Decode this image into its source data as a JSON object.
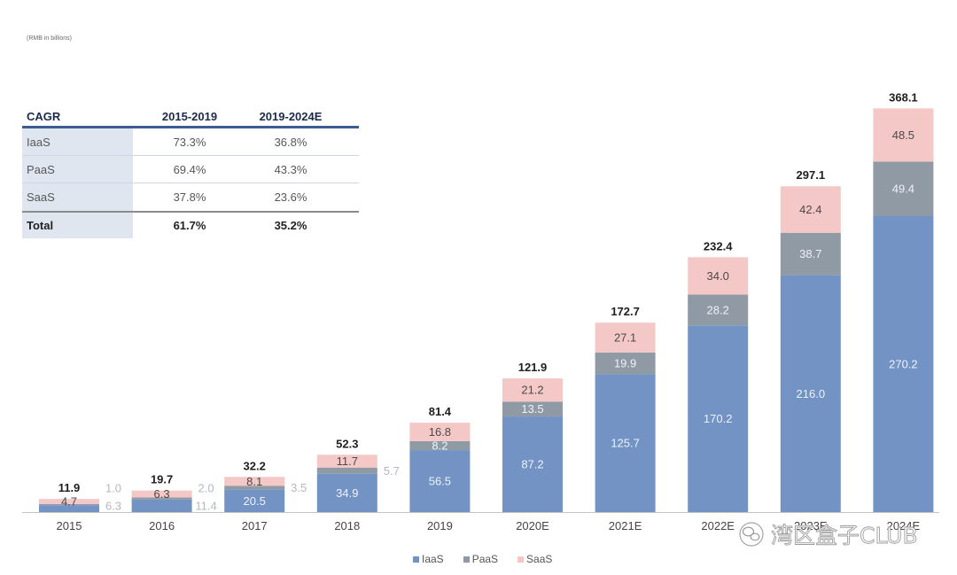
{
  "chart_data": {
    "type": "bar",
    "stacked": true,
    "ylabel": "(RMB in billions)",
    "categories": [
      "2015",
      "2016",
      "2017",
      "2018",
      "2019",
      "2020E",
      "2021E",
      "2022E",
      "2023E",
      "2024E"
    ],
    "series": [
      {
        "name": "IaaS",
        "color": "#7393c5",
        "values": [
          6.3,
          11.4,
          20.5,
          34.9,
          56.5,
          87.2,
          125.7,
          170.2,
          216.0,
          270.2
        ]
      },
      {
        "name": "PaaS",
        "color": "#8f9aa4",
        "values": [
          1.0,
          2.0,
          3.5,
          5.7,
          8.2,
          13.5,
          19.9,
          28.2,
          38.7,
          49.4
        ]
      },
      {
        "name": "SaaS",
        "color": "#f5c8c8",
        "values": [
          4.7,
          6.3,
          8.1,
          11.7,
          16.8,
          21.2,
          27.1,
          34.0,
          42.4,
          48.5
        ]
      }
    ],
    "totals": [
      11.9,
      19.7,
      32.2,
      52.3,
      81.4,
      121.9,
      172.7,
      232.4,
      297.1,
      368.1
    ],
    "ylim": [
      0,
      370
    ],
    "grid": false,
    "legend": "bottom-center"
  },
  "cagr_table": {
    "headers": [
      "CAGR",
      "2015-2019",
      "2019-2024E"
    ],
    "rows": [
      {
        "label": "IaaS",
        "cagr_2015_2019": "73.3%",
        "cagr_2019_2024e": "36.8%"
      },
      {
        "label": "PaaS",
        "cagr_2015_2019": "69.4%",
        "cagr_2019_2024e": "43.3%"
      },
      {
        "label": "SaaS",
        "cagr_2015_2019": "37.8%",
        "cagr_2019_2024e": "23.6%"
      },
      {
        "label": "Total",
        "cagr_2015_2019": "61.7%",
        "cagr_2019_2024e": "35.2%"
      }
    ]
  },
  "watermark": {
    "text": "湾区盒子CLUB"
  }
}
